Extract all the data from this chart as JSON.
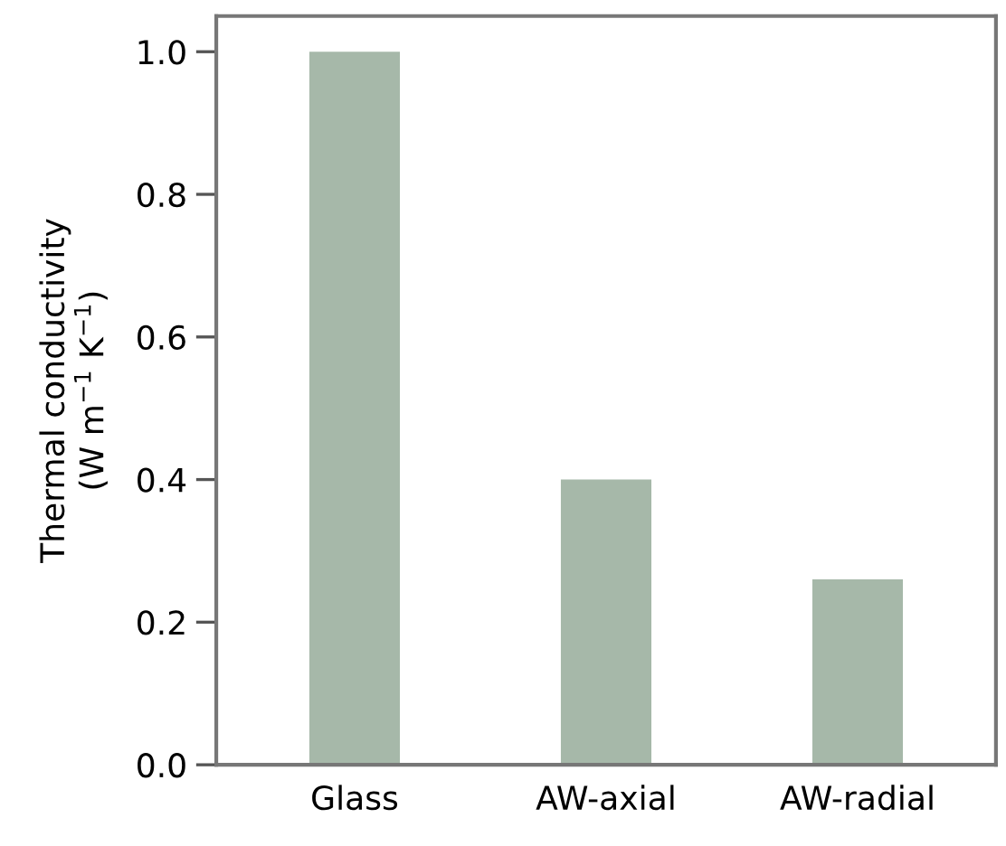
{
  "chart_data": {
    "type": "bar",
    "ylabel": "Thermal conductivity\n(W m$^{−1}$ K$^{−1}$)",
    "categories": [
      "Glass",
      "AW-axial",
      "AW-radial"
    ],
    "values": [
      1.0,
      0.4,
      0.26
    ],
    "color": "#a6b8a9",
    "ylim": [
      0,
      1.05
    ],
    "yticks": [
      {
        "value": 0,
        "label": "0.0"
      },
      0.2,
      0.4,
      0.6,
      0.8,
      {
        "value": 1,
        "label": "1.0"
      }
    ],
    "grid": false
  }
}
